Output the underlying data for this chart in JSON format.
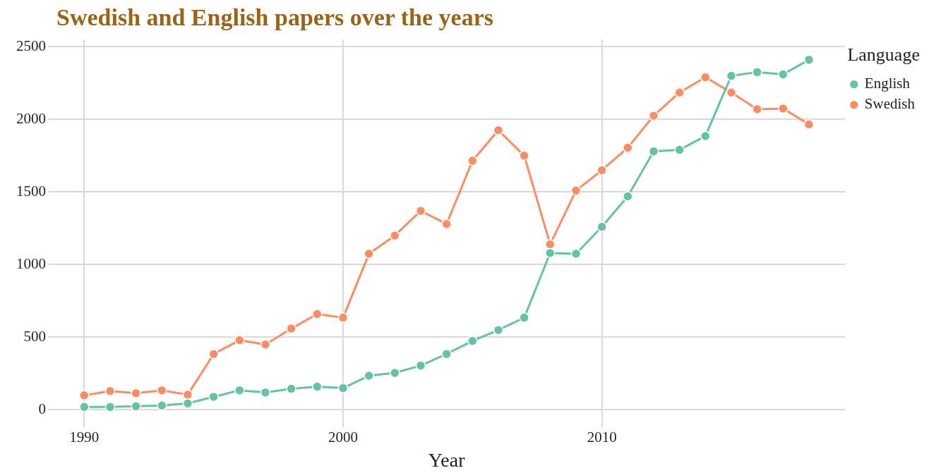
{
  "chart_data": {
    "type": "line",
    "title": "Swedish and English papers over the years",
    "xlabel": "Year",
    "legend_title": "Language",
    "x": [
      1990,
      1991,
      1992,
      1993,
      1994,
      1995,
      1996,
      1997,
      1998,
      1999,
      2000,
      2001,
      2002,
      2003,
      2004,
      2005,
      2006,
      2007,
      2008,
      2009,
      2010,
      2011,
      2012,
      2013,
      2014,
      2015,
      2016,
      2017,
      2018
    ],
    "series": [
      {
        "name": "English",
        "color": "#66c2a5",
        "values": [
          20,
          20,
          25,
          30,
          45,
          90,
          135,
          120,
          145,
          160,
          150,
          235,
          255,
          305,
          385,
          475,
          550,
          635,
          1080,
          1075,
          1260,
          1470,
          1780,
          1790,
          1885,
          2300,
          2325,
          2310,
          2410
        ]
      },
      {
        "name": "Swedish",
        "color": "#fc8d62",
        "values": [
          100,
          130,
          115,
          135,
          105,
          385,
          480,
          450,
          560,
          660,
          635,
          1075,
          1200,
          1370,
          1280,
          1715,
          1925,
          1750,
          1140,
          1510,
          1650,
          1805,
          2025,
          2185,
          2290,
          2185,
          2070,
          2075,
          1965
        ]
      }
    ],
    "xlim": [
      1988.6,
      2019.4
    ],
    "xticks": [
      1990,
      2000,
      2010
    ],
    "ylim": [
      -120,
      2550
    ],
    "yticks": [
      0,
      500,
      1000,
      1500,
      2000,
      2500
    ],
    "grid": true,
    "legend": "top right",
    "marker": "circle",
    "line_style": "solid"
  }
}
